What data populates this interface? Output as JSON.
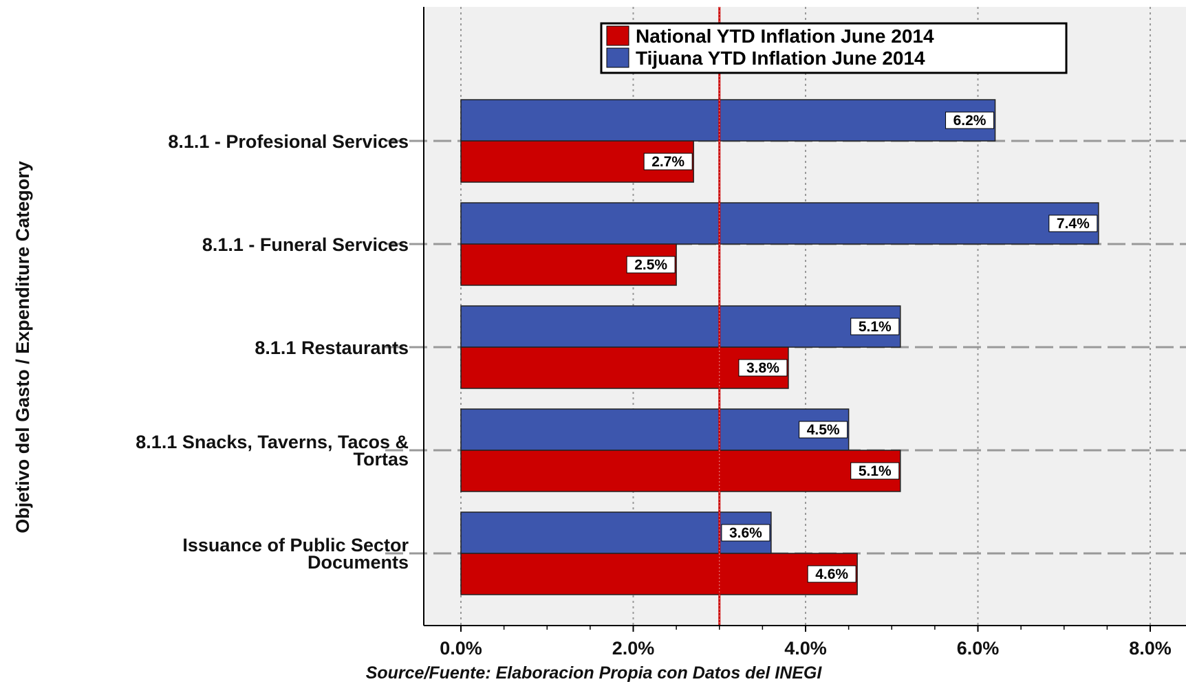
{
  "chart_data": {
    "type": "bar",
    "orientation": "horizontal",
    "title": "",
    "xlabel": "Source/Fuente: Elaboracion Propia con Datos del INEGI",
    "ylabel": "Objetivo del Gasto / Expenditure Category",
    "categories": [
      [
        "8.1.1 - Profesional Services"
      ],
      [
        "8.1.1 - Funeral Services"
      ],
      [
        "8.1.1 Restaurants"
      ],
      [
        "8.1.1 Snacks, Taverns, Tacos &",
        "Tortas"
      ],
      [
        "Issuance of Public Sector",
        "Documents"
      ]
    ],
    "series": [
      {
        "name": "Tijuana YTD Inflation June 2014",
        "color": "#3d56ad",
        "values": [
          6.2,
          7.4,
          5.1,
          4.5,
          3.6
        ],
        "labels": [
          "6.2%",
          "7.4%",
          "5.1%",
          "4.5%",
          "3.6%"
        ]
      },
      {
        "name": "National YTD Inflation June 2014",
        "color": "#cc0000",
        "values": [
          2.7,
          2.5,
          3.8,
          5.1,
          4.6
        ],
        "labels": [
          "2.7%",
          "2.5%",
          "3.8%",
          "5.1%",
          "4.6%"
        ]
      }
    ],
    "legend_order": [
      1,
      0
    ],
    "xlim": [
      0,
      8
    ],
    "xticks": [
      0,
      2,
      4,
      6,
      8
    ],
    "xtick_labels": [
      "0.0%",
      "2.0%",
      "4.0%",
      "6.0%",
      "8.0%"
    ],
    "reference_line": {
      "value": 3.0,
      "color": "#cc0000"
    },
    "grid": true,
    "legend_position": "top",
    "background_color": "#f0f0f0"
  }
}
